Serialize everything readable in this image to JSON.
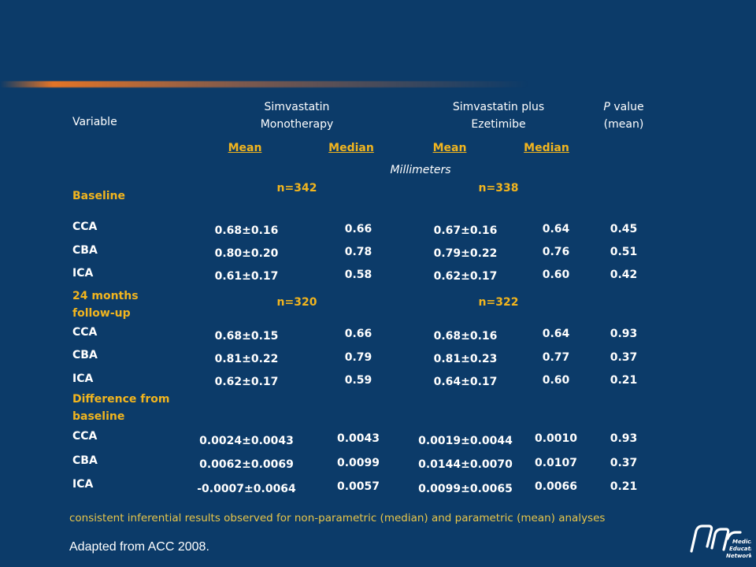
{
  "header": {
    "variable": "Variable",
    "group1": [
      "Simvastatin",
      "Monotherapy"
    ],
    "group2": [
      "Simvastatin plus",
      "Ezetimibe"
    ],
    "pvalue_italic": "P",
    "pvalue_rest": " value",
    "pvalue_line2": "(mean)",
    "sub": [
      "Mean",
      "Median",
      "Mean",
      "Median"
    ],
    "units": "Millimeters"
  },
  "sections": [
    {
      "label": "Baseline",
      "n1": "n=342",
      "n2": "n=338",
      "rows": [
        {
          "name": "CCA",
          "g1_mean": "0.68±0.16",
          "g1_median": "0.66",
          "g2_mean": "0.67±0.16",
          "g2_median": "0.64",
          "p": "0.45"
        },
        {
          "name": "CBA",
          "g1_mean": "0.80±0.20",
          "g1_median": "0.78",
          "g2_mean": "0.79±0.22",
          "g2_median": "0.76",
          "p": "0.51"
        },
        {
          "name": "ICA",
          "g1_mean": "0.61±0.17",
          "g1_median": "0.58",
          "g2_mean": "0.62±0.17",
          "g2_median": "0.60",
          "p": "0.42"
        }
      ]
    },
    {
      "label_lines": [
        "24 months",
        "follow-up"
      ],
      "n1": "n=320",
      "n2": "n=322",
      "rows": [
        {
          "name": "CCA",
          "g1_mean": "0.68±0.15",
          "g1_median": "0.66",
          "g2_mean": "0.68±0.16",
          "g2_median": "0.64",
          "p": "0.93"
        },
        {
          "name": "CBA",
          "g1_mean": "0.81±0.22",
          "g1_median": "0.79",
          "g2_mean": "0.81±0.23",
          "g2_median": "0.77",
          "p": "0.37"
        },
        {
          "name": "ICA",
          "g1_mean": "0.62±0.17",
          "g1_median": "0.59",
          "g2_mean": "0.64±0.17",
          "g2_median": "0.60",
          "p": "0.21"
        }
      ]
    },
    {
      "label_lines": [
        "Difference from",
        "baseline"
      ],
      "rows": [
        {
          "name": "CCA",
          "g1_mean": "0.0024±0.0043",
          "g1_median": "0.0043",
          "g2_mean": "0.0019±0.0044",
          "g2_median": "0.0010",
          "p": "0.93"
        },
        {
          "name": "CBA",
          "g1_mean": "0.0062±0.0069",
          "g1_median": "0.0099",
          "g2_mean": "0.0144±0.0070",
          "g2_median": "0.0107",
          "p": "0.37"
        },
        {
          "name": "ICA",
          "g1_mean": "-0.0007±0.0064",
          "g1_median": "0.0057",
          "g2_mean": "0.0099±0.0065",
          "g2_median": "0.0066",
          "p": "0.21"
        }
      ]
    }
  ],
  "footnote": "consistent inferential results observed for non-parametric (median) and parametric (mean) analyses",
  "source": "Adapted from ACC 2008.",
  "logo_text": [
    "Medical",
    "Education",
    "Network"
  ],
  "colors": {
    "background": "#0c3b69",
    "accent": "#f2b51e",
    "rule": "#f07823"
  }
}
